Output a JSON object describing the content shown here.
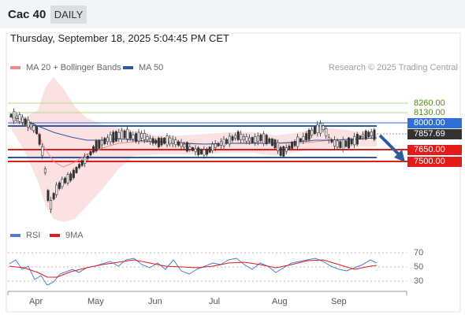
{
  "header": {
    "title": "Cac 40",
    "timeframe": "DAILY"
  },
  "datetime": "Thursday, September 18, 2025 5:04:45 PM CET",
  "legend": {
    "ma20": {
      "label": "MA 20 + Bollinger Bands",
      "color": "#f08a8a"
    },
    "ma50": {
      "label": "MA 50",
      "color": "#2f5b9e"
    }
  },
  "credit": "Research © 2025 Trading Central",
  "levels": {
    "r2": {
      "label": "8260.00",
      "color": "#5a8a1a"
    },
    "r1": {
      "label": "8130.00",
      "color": "#5a8a1a"
    },
    "pivot": {
      "label": "8000.00",
      "color": "#2f6fd6"
    },
    "last": {
      "label": "7857.69",
      "color": "#333333"
    },
    "s1": {
      "label": "7650.00",
      "color": "#e21b1b"
    },
    "s2": {
      "label": "7500.00",
      "color": "#e21b1b"
    }
  },
  "rsi_legend": {
    "rsi": {
      "label": "RSI",
      "color": "#4a7fd8"
    },
    "ma": {
      "label": "9MA",
      "color": "#e21b1b"
    }
  },
  "rsi_ticks": [
    "70",
    "50",
    "30"
  ],
  "months": [
    "Apr",
    "May",
    "Jun",
    "Jul",
    "Aug",
    "Sep"
  ],
  "chart_data": {
    "type": "candlestick",
    "price_levels": [
      8260,
      8130,
      8000,
      7857.69,
      7650,
      7500
    ],
    "ma20_bollinger": [
      8060,
      7990,
      7800,
      7520,
      7380,
      7320,
      7400,
      7520,
      7620,
      7700,
      7760,
      7800,
      7820,
      7800,
      7790,
      7780,
      7800,
      7800,
      7810,
      7820,
      7840,
      7850,
      7860
    ],
    "ma50": [
      8030,
      7950,
      7850,
      7720,
      7640,
      7600,
      7610,
      7650,
      7700,
      7740,
      7760,
      7770,
      7780,
      7780,
      7790,
      7800,
      7800,
      7810,
      7810,
      7820,
      7820,
      7830,
      7840
    ],
    "rsi": [
      52,
      46,
      35,
      30,
      40,
      52,
      58,
      56,
      59,
      52,
      56,
      48,
      54,
      60,
      52,
      48,
      58,
      60,
      52,
      43,
      56,
      48,
      55
    ],
    "rsi_9ma": [
      55,
      51,
      45,
      40,
      40,
      45,
      50,
      53,
      56,
      55,
      56,
      52,
      53,
      55,
      54,
      51,
      54,
      57,
      55,
      50,
      52,
      49,
      52
    ]
  }
}
